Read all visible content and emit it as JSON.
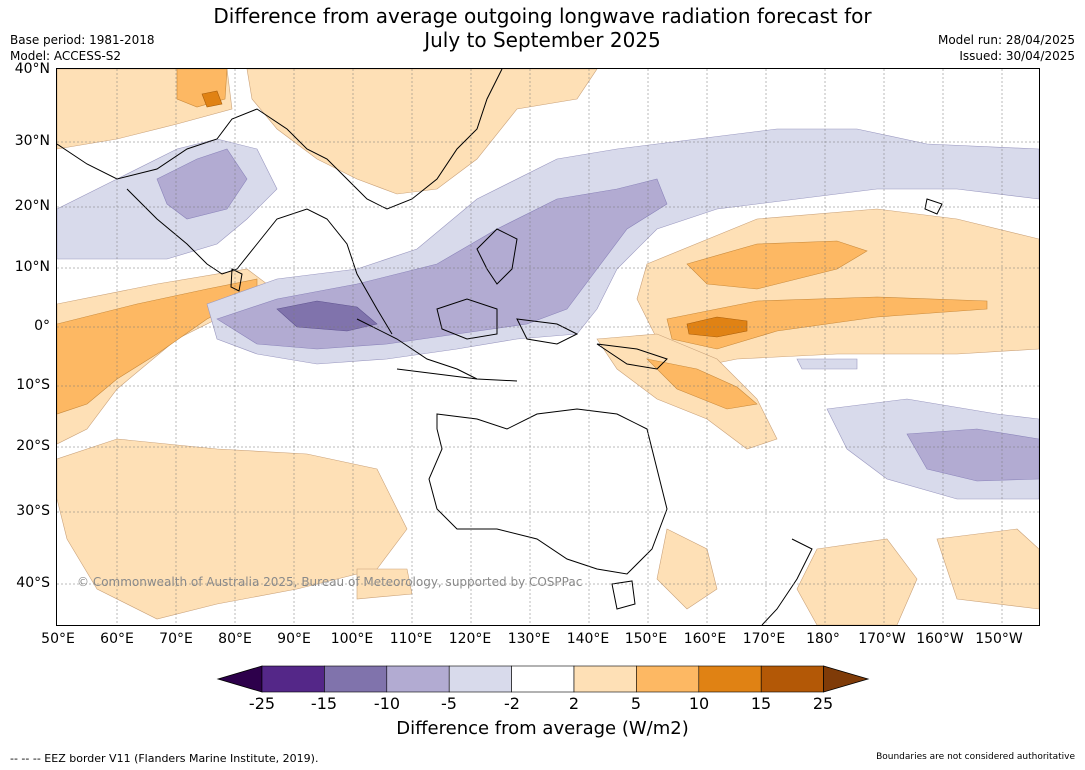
{
  "header": {
    "title_line1": "Difference from average outgoing longwave radiation forecast for",
    "title_line2": "July to September 2025",
    "base_period": "Base period: 1981-2018",
    "model": "Model: ACCESS-S2",
    "model_run": "Model run: 28/04/2025",
    "issued": "Issued: 30/04/2025"
  },
  "map": {
    "lat_labels": [
      "40°N",
      "30°N",
      "20°N",
      "10°N",
      "0°",
      "10°S",
      "20°S",
      "30°S",
      "40°S"
    ],
    "lon_labels": [
      "50°E",
      "60°E",
      "70°E",
      "80°E",
      "90°E",
      "100°E",
      "110°E",
      "120°E",
      "130°E",
      "140°E",
      "150°E",
      "160°E",
      "170°E",
      "180°",
      "170°W",
      "160°W",
      "150°W"
    ],
    "copyright": "© Commonwealth of Australia 2025, Bureau of Meteorology, supported by COSPPac",
    "colors": {
      "lt_neg25": "#2d004b",
      "neg25_neg15": "#542788",
      "neg15_neg10": "#8073ac",
      "neg10_neg5": "#b2abd2",
      "neg5_neg2": "#d8daeb",
      "neg2_2": "#ffffff",
      "p2_5": "#fee0b6",
      "p5_10": "#fdb863",
      "p10_15": "#e08214",
      "p15_25": "#b35806",
      "gt25": "#7f3b08"
    }
  },
  "colorbar": {
    "ticks": [
      "-25",
      "-15",
      "-10",
      "-5",
      "-2",
      "2",
      "5",
      "10",
      "15",
      "25"
    ],
    "label": "Difference from average (W/m2)",
    "colors": [
      "#542788",
      "#8073ac",
      "#b2abd2",
      "#d8daeb",
      "#ffffff",
      "#fee0b6",
      "#fdb863",
      "#e08214",
      "#b35806"
    ],
    "under_color": "#2d004b",
    "over_color": "#7f3b08"
  },
  "footer": {
    "eez_note": "--  --  -- EEZ border V11 (Flanders Marine Institute, 2019).",
    "disclaimer": "Boundaries are not considered authoritative"
  }
}
